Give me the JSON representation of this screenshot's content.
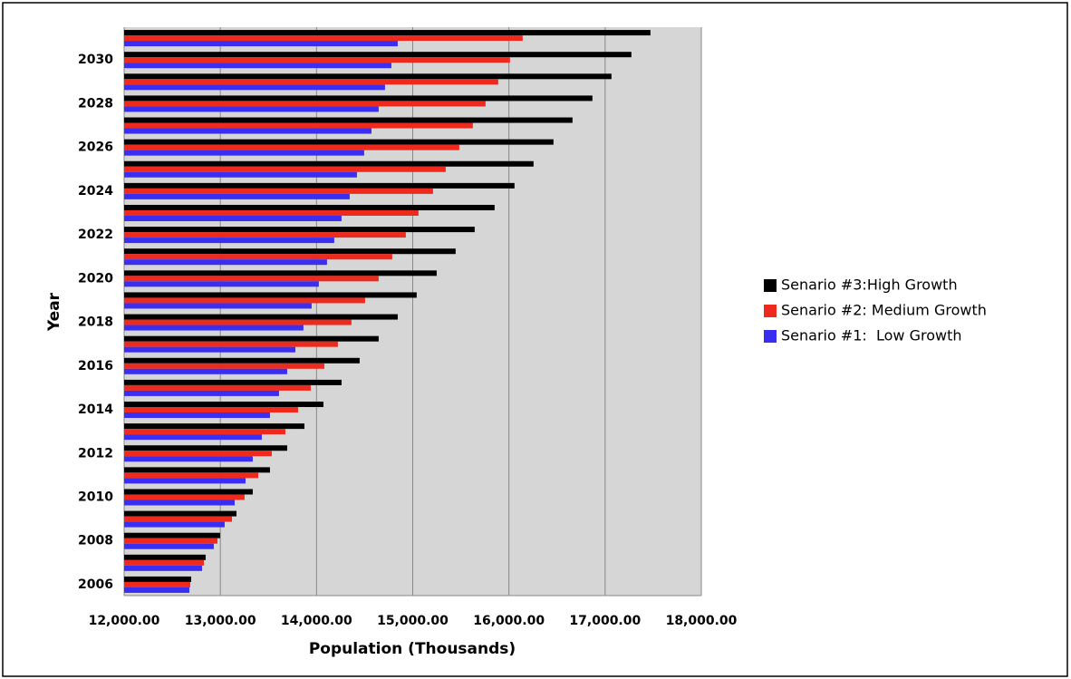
{
  "chart_data": {
    "type": "bar",
    "orientation": "horizontal",
    "x_label": "Population (Thousands)",
    "y_label": "Year",
    "categories": [
      "2006",
      null,
      "2008",
      null,
      "2010",
      null,
      "2012",
      null,
      "2014",
      null,
      "2016",
      null,
      "2018",
      null,
      "2020",
      null,
      "2022",
      null,
      "2024",
      null,
      "2026",
      null,
      "2028",
      null,
      "2030",
      null
    ],
    "series": [
      {
        "name": "Senario #3:High Growth",
        "color": "#000000",
        "values": [
          12697,
          12847,
          12998,
          13168,
          13337,
          13516,
          13695,
          13874,
          14072,
          14260,
          14448,
          14646,
          14844,
          15041,
          15249,
          15446,
          15644,
          15851,
          16058,
          16256,
          16463,
          16661,
          16868,
          17066,
          17273,
          17471
        ]
      },
      {
        "name": "Senario #2: Medium Growth",
        "color": "#ee2a1e",
        "values": [
          12687,
          12829,
          12970,
          13121,
          13252,
          13394,
          13535,
          13676,
          13808,
          13940,
          14081,
          14222,
          14363,
          14505,
          14646,
          14787,
          14928,
          15060,
          15211,
          15343,
          15484,
          15625,
          15757,
          15889,
          16011,
          16143
        ]
      },
      {
        "name": "Senario #1:  Low Growth",
        "color": "#3a2ef0",
        "values": [
          12678,
          12810,
          12932,
          13045,
          13149,
          13262,
          13337,
          13431,
          13516,
          13610,
          13695,
          13780,
          13864,
          13949,
          14024,
          14109,
          14184,
          14260,
          14345,
          14420,
          14495,
          14571,
          14646,
          14712,
          14778,
          14844
        ]
      }
    ],
    "xlim": [
      12000,
      18000
    ],
    "xticks": [
      {
        "value": 12000,
        "label": "12,000.00"
      },
      {
        "value": 13000,
        "label": "13,000.00"
      },
      {
        "value": 14000,
        "label": "14,000.00"
      },
      {
        "value": 15000,
        "label": "15,000.00"
      },
      {
        "value": 16000,
        "label": "16,000.00"
      },
      {
        "value": 17000,
        "label": "17,000.00"
      },
      {
        "value": 18000,
        "label": "18,000.00"
      }
    ],
    "grid": true,
    "legend": "right"
  }
}
